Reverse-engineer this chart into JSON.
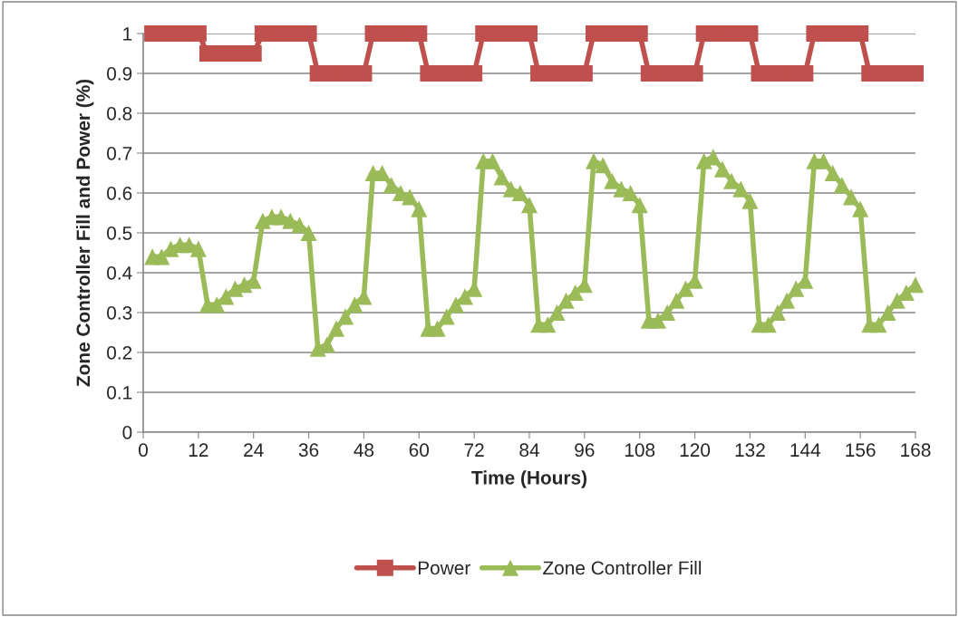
{
  "chart_data": {
    "type": "line",
    "xlabel": "Time (Hours)",
    "ylabel": "Zone Controller Fill and Power (%)",
    "x": [
      2,
      4,
      6,
      8,
      10,
      12,
      14,
      16,
      18,
      20,
      22,
      24,
      26,
      28,
      30,
      32,
      34,
      36,
      38,
      40,
      42,
      44,
      46,
      48,
      50,
      52,
      54,
      56,
      58,
      60,
      62,
      64,
      66,
      68,
      70,
      72,
      74,
      76,
      78,
      80,
      82,
      84,
      86,
      88,
      90,
      92,
      94,
      96,
      98,
      100,
      102,
      104,
      106,
      108,
      110,
      112,
      114,
      116,
      118,
      120,
      122,
      124,
      126,
      128,
      130,
      132,
      134,
      136,
      138,
      140,
      142,
      144,
      146,
      148,
      150,
      152,
      154,
      156,
      158,
      160,
      162,
      164,
      166,
      168
    ],
    "series": [
      {
        "name": "Power",
        "color": "#c0504d",
        "marker": "square",
        "values": [
          1,
          1,
          1,
          1,
          1,
          1,
          0.95,
          0.95,
          0.95,
          0.95,
          0.95,
          0.95,
          1,
          1,
          1,
          1,
          1,
          1,
          0.9,
          0.9,
          0.9,
          0.9,
          0.9,
          0.9,
          1,
          1,
          1,
          1,
          1,
          1,
          0.9,
          0.9,
          0.9,
          0.9,
          0.9,
          0.9,
          1,
          1,
          1,
          1,
          1,
          1,
          0.9,
          0.9,
          0.9,
          0.9,
          0.9,
          0.9,
          1,
          1,
          1,
          1,
          1,
          1,
          0.9,
          0.9,
          0.9,
          0.9,
          0.9,
          0.9,
          1,
          1,
          1,
          1,
          1,
          1,
          0.9,
          0.9,
          0.9,
          0.9,
          0.9,
          0.9,
          1,
          1,
          1,
          1,
          1,
          1,
          0.9,
          0.9,
          0.9,
          0.9,
          0.9,
          0.9
        ]
      },
      {
        "name": "Zone Controller Fill",
        "color": "#9bbb59",
        "marker": "triangle",
        "values": [
          0.44,
          0.44,
          0.46,
          0.47,
          0.47,
          0.46,
          0.32,
          0.32,
          0.34,
          0.36,
          0.37,
          0.38,
          0.53,
          0.54,
          0.54,
          0.53,
          0.52,
          0.5,
          0.21,
          0.22,
          0.26,
          0.29,
          0.32,
          0.34,
          0.65,
          0.65,
          0.62,
          0.6,
          0.59,
          0.56,
          0.26,
          0.26,
          0.29,
          0.32,
          0.34,
          0.36,
          0.68,
          0.68,
          0.64,
          0.61,
          0.6,
          0.57,
          0.27,
          0.27,
          0.3,
          0.33,
          0.35,
          0.37,
          0.68,
          0.67,
          0.63,
          0.61,
          0.6,
          0.57,
          0.28,
          0.28,
          0.3,
          0.33,
          0.36,
          0.38,
          0.68,
          0.69,
          0.66,
          0.63,
          0.61,
          0.58,
          0.27,
          0.27,
          0.3,
          0.33,
          0.36,
          0.38,
          0.68,
          0.68,
          0.65,
          0.62,
          0.59,
          0.56,
          0.27,
          0.27,
          0.3,
          0.33,
          0.35,
          0.37
        ]
      }
    ],
    "xlim": [
      0,
      168
    ],
    "xticks": [
      0,
      12,
      24,
      36,
      48,
      60,
      72,
      84,
      96,
      108,
      120,
      132,
      144,
      156,
      168
    ],
    "ylim": [
      0,
      1
    ],
    "yticks": [
      0,
      0.1,
      0.2,
      0.3,
      0.4,
      0.5,
      0.6,
      0.7,
      0.8,
      0.9,
      1
    ],
    "grid": "y",
    "legend": "bottom"
  }
}
